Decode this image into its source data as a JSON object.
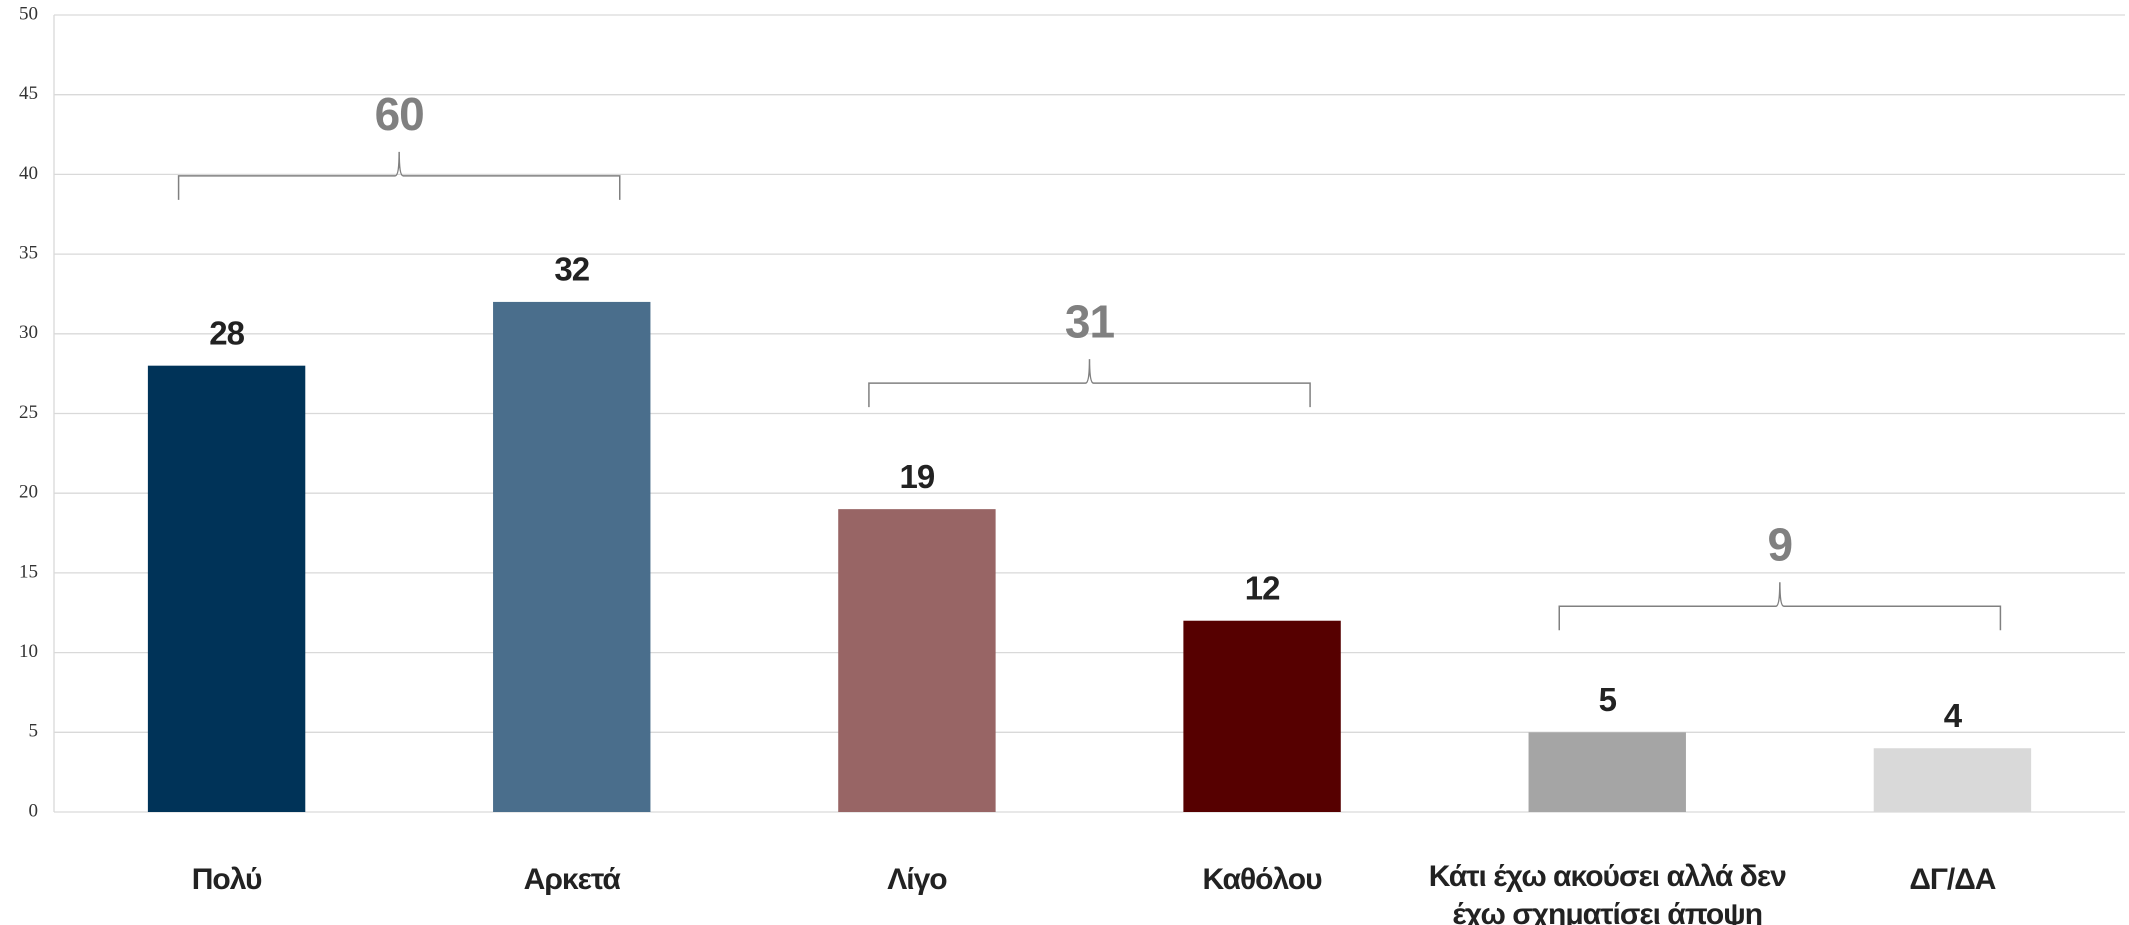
{
  "chart_data": {
    "type": "bar",
    "categories": [
      "Πολύ",
      "Αρκετά",
      "Λίγο",
      "Καθόλου",
      "Κάτι έχω ακούσει αλλά δεν έχω σχηματίσει άποψη",
      "ΔΓ/ΔΑ"
    ],
    "values": [
      28,
      32,
      19,
      12,
      5,
      4
    ],
    "colors": [
      "#003358",
      "#4a6e8c",
      "#986565",
      "#560000",
      "#a5a5a5",
      "#d9d9d9"
    ],
    "group_totals": [
      60,
      31,
      9
    ],
    "ylim": [
      0,
      50
    ],
    "yticks": [
      0,
      5,
      10,
      15,
      20,
      25,
      30,
      35,
      40,
      45,
      50
    ],
    "grid": true
  }
}
